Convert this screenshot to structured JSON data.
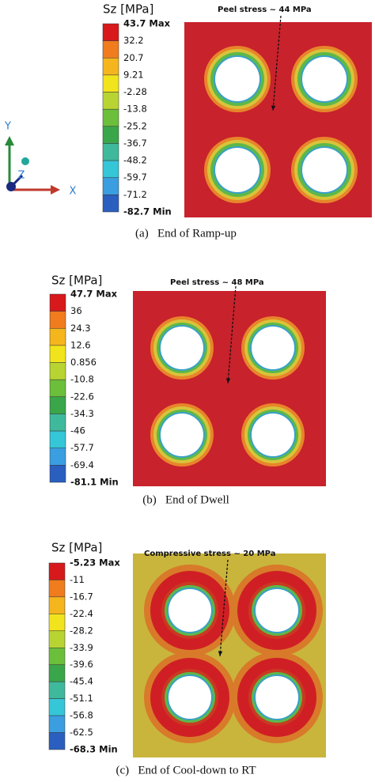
{
  "figure": {
    "axes": {
      "y": "Y",
      "z": "Z",
      "x": "X"
    },
    "panels": [
      {
        "legend_title": "Sz [MPa]",
        "legend_labels": [
          "43.7 Max",
          "32.2",
          "20.7",
          "9.21",
          "-2.28",
          "-13.8",
          "-25.2",
          "-36.7",
          "-48.2",
          "-59.7",
          "-71.2",
          "-82.7 Min"
        ],
        "annotation": "Peel stress ~ 44 MPa",
        "caption": "(a)   End of Ramp-up"
      },
      {
        "legend_title": "Sz [MPa]",
        "legend_labels": [
          "47.7 Max",
          "36",
          "24.3",
          "12.6",
          "0.856",
          "-10.8",
          "-22.6",
          "-34.3",
          "-46",
          "-57.7",
          "-69.4",
          "-81.1 Min"
        ],
        "annotation": "Peel stress ~ 48 MPa",
        "caption": "(b)   End of Dwell"
      },
      {
        "legend_title": "Sz [MPa]",
        "legend_labels": [
          "-5.23 Max",
          "-11",
          "-16.7",
          "-22.4",
          "-28.2",
          "-33.9",
          "-39.6",
          "-45.4",
          "-51.1",
          "-56.8",
          "-62.5",
          "-68.3 Min"
        ],
        "annotation": "Compressive stress ~ 20 MPa",
        "caption": "(c)   End of Cool-down to RT"
      }
    ]
  }
}
